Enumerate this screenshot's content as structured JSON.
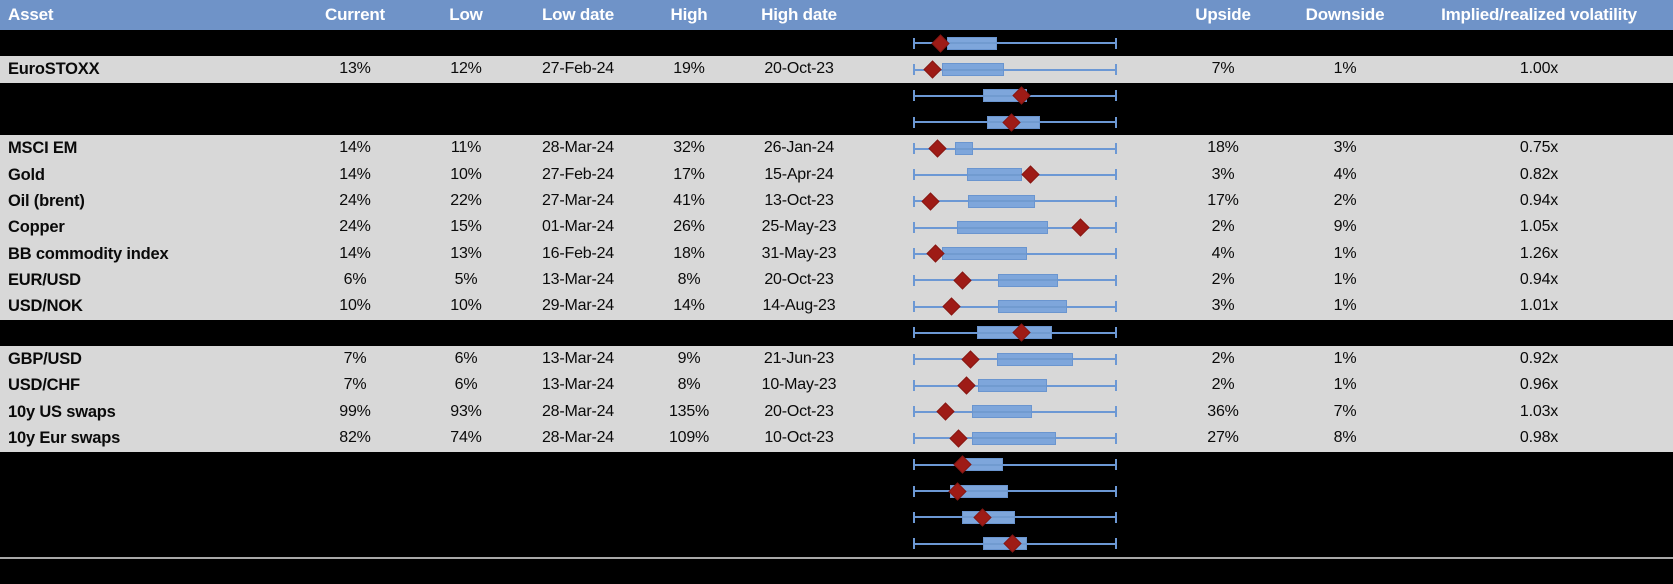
{
  "colors": {
    "header_bg": "#6F93C8",
    "row_gray": "#D8D8D8",
    "row_black": "#000000",
    "whisker_blue": "#6C98D4",
    "box_fill": "#7EA6DB",
    "box_border": "#6A95CF",
    "diamond_red": "#9E1B16",
    "separator_gray": "#A8A8A8",
    "header_text": "#FFFFFF",
    "body_text": "#0A0A0A"
  },
  "chart_data": {
    "type": "table",
    "title": "Implied volatility ranges by asset",
    "legend_position": "none",
    "grid": false,
    "columns": [
      "Asset",
      "Current",
      "Low",
      "Low date",
      "High",
      "High date",
      "Upside",
      "Downside",
      "Implied/realized volatility"
    ],
    "plot_note": "Each row shows a horizontal box-whisker: whisker = low-to-high range, blue box = typical range, red diamond = current level; fractions are 0-1 across the plot width. Black rows are formatted-hidden rows whose plots remain visible.",
    "rows": [
      {
        "kind": "hidden",
        "plot": {
          "box": [
            0.165,
            0.41
          ],
          "diamond": 0.137
        }
      },
      {
        "kind": "asset",
        "asset": "EuroSTOXX",
        "current": "13%",
        "low": "12%",
        "low_date": "27-Feb-24",
        "high": "19%",
        "high_date": "20-Oct-23",
        "upside": "7%",
        "downside": "1%",
        "iv": "1.00x",
        "plot": {
          "box": [
            0.14,
            0.446
          ],
          "diamond": 0.095
        }
      },
      {
        "kind": "hidden",
        "plot": {
          "box": [
            0.343,
            0.56
          ],
          "diamond": 0.533
        }
      },
      {
        "kind": "hidden",
        "plot": {
          "box": [
            0.362,
            0.623
          ],
          "diamond": 0.485
        }
      },
      {
        "kind": "asset",
        "asset": "MSCI EM",
        "current": "14%",
        "low": "11%",
        "low_date": "28-Mar-24",
        "high": "32%",
        "high_date": "26-Jan-24",
        "upside": "18%",
        "downside": "3%",
        "iv": "0.75x",
        "plot": {
          "box": [
            0.206,
            0.292
          ],
          "diamond": 0.12
        }
      },
      {
        "kind": "asset",
        "asset": "Gold",
        "current": "14%",
        "low": "10%",
        "low_date": "27-Feb-24",
        "high": "17%",
        "high_date": "15-Apr-24",
        "upside": "3%",
        "downside": "4%",
        "iv": "0.82x",
        "plot": {
          "box": [
            0.263,
            0.533
          ],
          "diamond": 0.574
        }
      },
      {
        "kind": "asset",
        "asset": "Oil (brent)",
        "current": "24%",
        "low": "22%",
        "low_date": "27-Mar-24",
        "high": "41%",
        "high_date": "13-Oct-23",
        "upside": "17%",
        "downside": "2%",
        "iv": "0.94x",
        "plot": {
          "box": [
            0.27,
            0.598
          ],
          "diamond": 0.088
        }
      },
      {
        "kind": "asset",
        "asset": "Copper",
        "current": "24%",
        "low": "15%",
        "low_date": "01-Mar-24",
        "high": "26%",
        "high_date": "25-May-23",
        "upside": "2%",
        "downside": "9%",
        "iv": "1.05x",
        "plot": {
          "box": [
            0.216,
            0.662
          ],
          "diamond": 0.819
        }
      },
      {
        "kind": "asset",
        "asset": "BB commodity index",
        "current": "14%",
        "low": "13%",
        "low_date": "16-Feb-24",
        "high": "18%",
        "high_date": "31-May-23",
        "upside": "4%",
        "downside": "1%",
        "iv": "1.26x",
        "plot": {
          "box": [
            0.142,
            0.559
          ],
          "diamond": 0.108
        }
      },
      {
        "kind": "asset",
        "asset": "EUR/USD",
        "current": "6%",
        "low": "5%",
        "low_date": "13-Mar-24",
        "high": "8%",
        "high_date": "20-Oct-23",
        "upside": "2%",
        "downside": "1%",
        "iv": "0.94x",
        "plot": {
          "box": [
            0.417,
            0.711
          ],
          "diamond": 0.245
        }
      },
      {
        "kind": "asset",
        "asset": "USD/NOK",
        "current": "10%",
        "low": "10%",
        "low_date": "29-Mar-24",
        "high": "14%",
        "high_date": "14-Aug-23",
        "upside": "3%",
        "downside": "1%",
        "iv": "1.01x",
        "plot": {
          "box": [
            0.417,
            0.754
          ],
          "diamond": 0.19
        }
      },
      {
        "kind": "hidden",
        "plot": {
          "box": [
            0.314,
            0.68
          ],
          "diamond": 0.533
        }
      },
      {
        "kind": "asset",
        "asset": "GBP/USD",
        "current": "7%",
        "low": "6%",
        "low_date": "13-Mar-24",
        "high": "9%",
        "high_date": "21-Jun-23",
        "upside": "2%",
        "downside": "1%",
        "iv": "0.92x",
        "plot": {
          "box": [
            0.412,
            0.786
          ],
          "diamond": 0.28
        }
      },
      {
        "kind": "asset",
        "asset": "USD/CHF",
        "current": "7%",
        "low": "6%",
        "low_date": "13-Mar-24",
        "high": "8%",
        "high_date": "10-May-23",
        "upside": "2%",
        "downside": "1%",
        "iv": "0.96x",
        "plot": {
          "box": [
            0.32,
            0.655
          ],
          "diamond": 0.264
        }
      },
      {
        "kind": "asset",
        "asset": "10y US swaps",
        "current": "99%",
        "low": "93%",
        "low_date": "28-Mar-24",
        "high": "135%",
        "high_date": "20-Oct-23",
        "upside": "36%",
        "downside": "7%",
        "iv": "1.03x",
        "plot": {
          "box": [
            0.289,
            0.585
          ],
          "diamond": 0.158
        }
      },
      {
        "kind": "asset",
        "asset": "10y Eur swaps",
        "current": "82%",
        "low": "74%",
        "low_date": "28-Mar-24",
        "high": "109%",
        "high_date": "10-Oct-23",
        "upside": "27%",
        "downside": "8%",
        "iv": "0.98x",
        "plot": {
          "box": [
            0.289,
            0.7
          ],
          "diamond": 0.222
        }
      },
      {
        "kind": "hidden",
        "plot": {
          "box": [
            0.23,
            0.44
          ],
          "diamond": 0.245
        }
      },
      {
        "kind": "hidden",
        "plot": {
          "box": [
            0.181,
            0.466
          ],
          "diamond": 0.22
        }
      },
      {
        "kind": "hidden",
        "plot": {
          "box": [
            0.24,
            0.5
          ],
          "diamond": 0.343
        }
      },
      {
        "kind": "hidden",
        "plot": {
          "box": [
            0.343,
            0.559
          ],
          "diamond": 0.49
        }
      }
    ]
  }
}
